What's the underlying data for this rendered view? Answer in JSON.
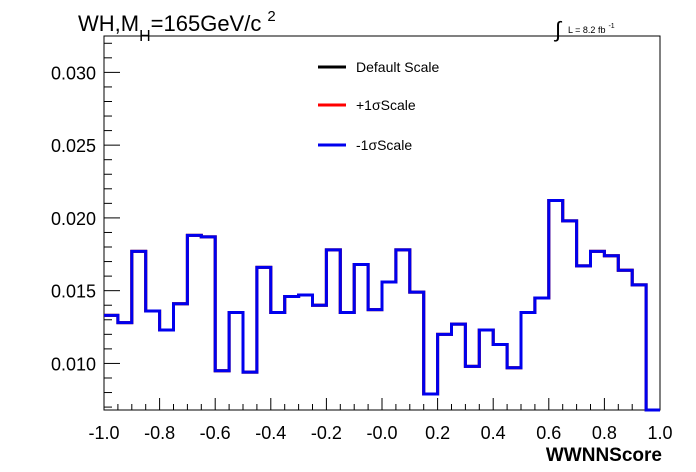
{
  "chart_data": {
    "type": "line",
    "title": {
      "base": "WH,M",
      "subscript": "H",
      "rest": "=165GeV/c",
      "superscript": "2"
    },
    "luminosity": {
      "integral_symbol": "∫",
      "text": "L = 8.2 fb",
      "superscript": "-1"
    },
    "xlabel": "WWNNScore",
    "xlim": [
      -1.0,
      1.0
    ],
    "ylim": [
      0.0068,
      0.0325
    ],
    "xticks": [
      "-1.0",
      "-0.8",
      "-0.6",
      "-0.4",
      "-0.2",
      "-0.0",
      "0.2",
      "0.4",
      "0.6",
      "0.8",
      "1.0"
    ],
    "yticks": [
      "0.010",
      "0.015",
      "0.020",
      "0.025",
      "0.030"
    ],
    "legend_placement": "top-center",
    "series": [
      {
        "name": "Default Scale",
        "color": "#000000"
      },
      {
        "name": "+1σScale",
        "color": "#ff0000"
      },
      {
        "name": "-1σScale",
        "color": "#0000ee"
      }
    ],
    "bin_edges_start": -1.0,
    "bin_width": 0.05,
    "values": [
      0.0133,
      0.0128,
      0.0177,
      0.0136,
      0.0123,
      0.0141,
      0.0188,
      0.0187,
      0.0095,
      0.0135,
      0.0094,
      0.0166,
      0.0135,
      0.0146,
      0.0147,
      0.014,
      0.0178,
      0.0135,
      0.0168,
      0.0137,
      0.0156,
      0.0178,
      0.0149,
      0.0079,
      0.012,
      0.0127,
      0.0098,
      0.0123,
      0.0113,
      0.0097,
      0.0135,
      0.0145,
      0.0212,
      0.0198,
      0.0167,
      0.0177,
      0.0174,
      0.0164,
      0.0154,
      0.0068
    ]
  }
}
